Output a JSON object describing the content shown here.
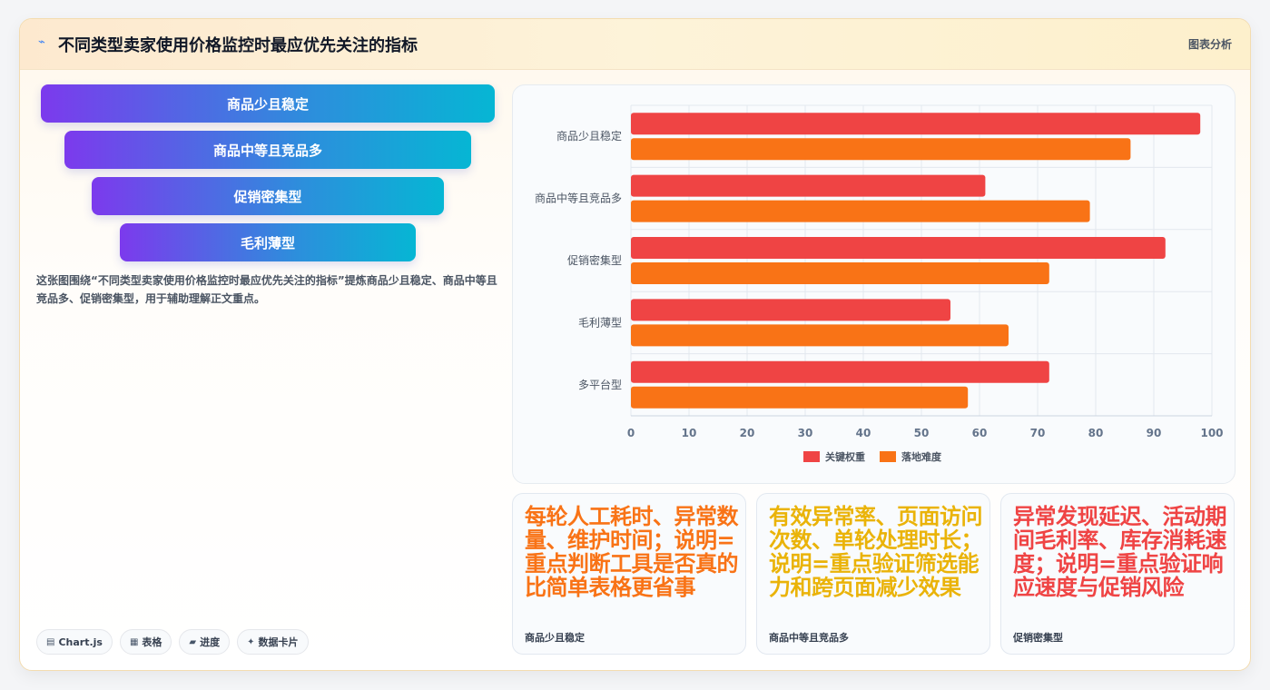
{
  "header": {
    "title": "不同类型卖家使用价格监控时最应优先关注的指标",
    "tag": "图表分析",
    "icon": "trend-icon"
  },
  "funnel": [
    {
      "label": "商品少且稳定"
    },
    {
      "label": "商品中等且竞品多"
    },
    {
      "label": "促销密集型"
    },
    {
      "label": "毛利薄型"
    }
  ],
  "description": "这张图围绕“不同类型卖家使用价格监控时最应优先关注的指标”提炼商品少且稳定、商品中等且竞品多、促销密集型，用于辅助理解正文重点。",
  "tools": [
    {
      "icon": "chart-icon",
      "glyph": "▤",
      "label": "Chart.js"
    },
    {
      "icon": "table-icon",
      "glyph": "▦",
      "label": "表格"
    },
    {
      "icon": "progress-icon",
      "glyph": "▰",
      "label": "进度"
    },
    {
      "icon": "sparkle-icon",
      "glyph": "✦",
      "label": "数据卡片"
    }
  ],
  "chart_data": {
    "type": "bar",
    "orientation": "horizontal",
    "categories": [
      "商品少且稳定",
      "商品中等且竞品多",
      "促销密集型",
      "毛利薄型",
      "多平台型"
    ],
    "series": [
      {
        "name": "关键权重",
        "values": [
          98,
          61,
          92,
          55,
          72
        ],
        "color": "#ef4444"
      },
      {
        "name": "落地难度",
        "values": [
          86,
          79,
          72,
          65,
          58
        ],
        "color": "#f97316"
      }
    ],
    "xlim": [
      0,
      100
    ],
    "xticks": [
      0,
      10,
      20,
      30,
      40,
      50,
      60,
      70,
      80,
      90,
      100
    ],
    "grid": true,
    "legend_position": "bottom"
  },
  "kpis": [
    {
      "value": "每轮人工耗时、异常数量、维护时间；说明=重点判断工具是否真的比简单表格更省事",
      "label": "商品少且稳定",
      "color": "#f97316"
    },
    {
      "value": "有效异常率、页面访问次数、单轮处理时长；说明=重点验证筛选能力和跨页面减少效果",
      "label": "商品中等且竞品多",
      "color": "#eab308"
    },
    {
      "value": "异常发现延迟、活动期间毛利率、库存消耗速度；说明=重点验证响应速度与促销风险",
      "label": "促销密集型",
      "color": "#ef4444"
    }
  ]
}
